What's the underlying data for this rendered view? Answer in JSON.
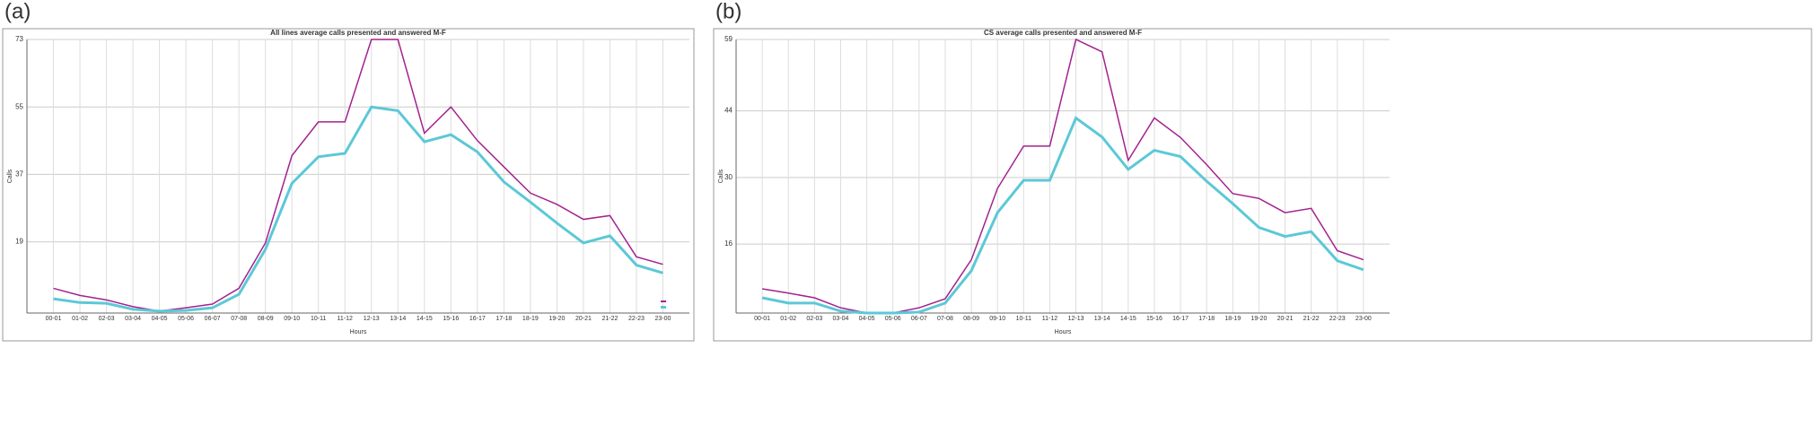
{
  "chart_data": [
    {
      "type": "line",
      "panel_label": "(a)",
      "title": "All lines average calls presented and answered M-F",
      "ylabel": "Calls",
      "xlabel": "Hours",
      "categories": [
        "00-01",
        "01-02",
        "02-03",
        "03-04",
        "04-05",
        "05-06",
        "06-07",
        "07-08",
        "08-09",
        "09-10",
        "10-11",
        "11-12",
        "12-13",
        "13-14",
        "14-15",
        "15-16",
        "16-17",
        "17-18",
        "18-19",
        "19-20",
        "20-21",
        "21-22",
        "22-23",
        "23-00"
      ],
      "series": [
        {
          "color": "#a3228f",
          "values": [
            6.6,
            4.7,
            3.5,
            1.7,
            0.5,
            1.4,
            2.4,
            6.6,
            18.7,
            42,
            51,
            51,
            73,
            73,
            48,
            55,
            46,
            39,
            32,
            29,
            25,
            26,
            15,
            13
          ]
        },
        {
          "color": "#5cc8d7",
          "values": [
            3.8,
            2.8,
            2.6,
            1,
            0.5,
            0.7,
            1.4,
            5,
            17,
            34.6,
            41.7,
            42.6,
            55,
            54,
            45.7,
            47.6,
            43,
            35,
            29.6,
            24,
            18.7,
            20.6,
            12.8,
            10.7
          ]
        }
      ],
      "ylim": [
        0,
        73
      ],
      "yticks": [
        19,
        37,
        55,
        73
      ],
      "grid": true,
      "legend": "lower right"
    },
    {
      "type": "line",
      "panel_label": "(b)",
      "title": "CS average calls presented and answered M-F",
      "ylabel": "Calls",
      "xlabel": "Hours",
      "categories": [
        "00-01",
        "01-02",
        "02-03",
        "03-04",
        "04-05",
        "05-06",
        "06-07",
        "07-08",
        "08-09",
        "09-10",
        "10-11",
        "11-12",
        "12-13",
        "13-14",
        "14-15",
        "15-16",
        "16-17",
        "17-18",
        "18-19",
        "19-20",
        "20-21",
        "21-22",
        "22-23",
        "23-00"
      ],
      "series": [
        {
          "color": "#a3228f",
          "values": [
            6.6,
            5.7,
            4.7,
            2.6,
            1.5,
            1.5,
            2.6,
            4.5,
            12.7,
            27.7,
            36.6,
            36.6,
            59,
            56.4,
            33.6,
            42.5,
            38.4,
            32.7,
            26.6,
            25.6,
            22.6,
            23.5,
            14.6,
            12.7
          ]
        },
        {
          "color": "#5cc8d7",
          "values": [
            4.7,
            3.6,
            3.6,
            1.9,
            1.5,
            1.5,
            1.7,
            3.6,
            10.4,
            22.6,
            29.4,
            29.4,
            42.5,
            38.5,
            31.7,
            35.7,
            34.4,
            29.2,
            24.5,
            19.5,
            17.6,
            18.6,
            12.5,
            10.6
          ]
        }
      ],
      "ylim": [
        1.5,
        59
      ],
      "yticks": [
        16,
        30,
        44,
        59
      ],
      "grid": true
    }
  ]
}
